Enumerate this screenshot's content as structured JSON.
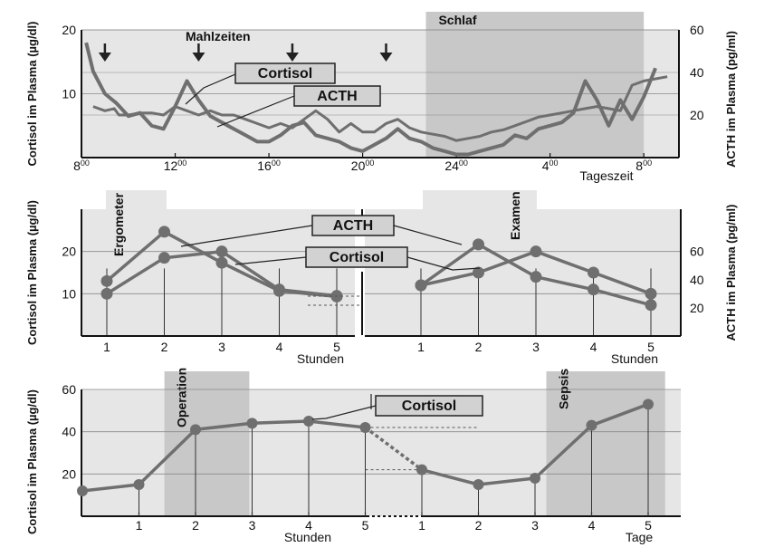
{
  "colors": {
    "panel_bg": "#e6e6e6",
    "band": "#c8c8c8",
    "line": "#6f6f6f",
    "marker": "#6f6f6f",
    "grid": "#8a8a8a",
    "text": "#111111"
  },
  "chart_data": [
    {
      "type": "line",
      "title": "",
      "xlabel": "Tageszeit",
      "ylabel": "Cortisol im Plasma (µg/dl)",
      "ylabel_right": "ACTH im Plasma (pg/ml)",
      "x_ticks": [
        {
          "x": 8,
          "main": "8",
          "sup": "00"
        },
        {
          "x": 12,
          "main": "12",
          "sup": "00"
        },
        {
          "x": 16,
          "main": "16",
          "sup": "00"
        },
        {
          "x": 20,
          "main": "20",
          "sup": "00"
        },
        {
          "x": 24,
          "main": "24",
          "sup": "00"
        },
        {
          "x": 28,
          "main": "4",
          "sup": "00"
        },
        {
          "x": 32,
          "main": "8",
          "sup": "00"
        }
      ],
      "xlim": [
        8,
        33.5
      ],
      "ylim": [
        0,
        20
      ],
      "ylim_right": [
        0,
        60
      ],
      "y_ticks": [
        10,
        20
      ],
      "y_ticks_right": [
        20,
        40,
        60
      ],
      "annotations": {
        "meals": "Mahlzeiten",
        "sleep": "Schlaf",
        "meal_times": [
          9,
          13,
          17,
          21
        ]
      },
      "sleep_band": [
        22.7,
        32
      ],
      "series": [
        {
          "name": "Cortisol",
          "axis": "left",
          "x": [
            8.2,
            8.5,
            9.0,
            9.5,
            10.0,
            10.5,
            11.0,
            11.5,
            12.0,
            12.5,
            13.0,
            13.5,
            14.0,
            14.5,
            15.0,
            15.5,
            16.0,
            16.5,
            17.0,
            17.5,
            18.0,
            18.5,
            19.0,
            19.5,
            20.0,
            20.5,
            21.0,
            21.5,
            22.0,
            22.5,
            23.0,
            23.5,
            24.0,
            24.5,
            25.0,
            25.5,
            26.0,
            26.5,
            27.0,
            27.5,
            28.0,
            28.5,
            29.0,
            29.5,
            30.0,
            30.5,
            31.0,
            31.5,
            32.0,
            32.5
          ],
          "values": [
            18,
            13.5,
            10,
            8.5,
            6.5,
            7,
            5,
            4.5,
            8,
            12,
            9,
            6.5,
            5.5,
            4.5,
            3.5,
            2.5,
            2.5,
            3.5,
            5,
            5.5,
            3.5,
            3,
            2.5,
            1.5,
            1,
            2,
            3,
            4.5,
            3,
            2.5,
            1.5,
            1,
            0.5,
            0.5,
            1,
            1.5,
            2,
            3.5,
            3,
            4.5,
            5,
            5.5,
            7,
            12,
            9,
            5,
            9,
            6,
            9.5,
            14
          ]
        },
        {
          "name": "ACTH",
          "axis": "right",
          "x": [
            8.5,
            9.0,
            9.4,
            9.6,
            10.0,
            10.5,
            11.0,
            11.5,
            12.0,
            12.5,
            13.0,
            13.5,
            14.0,
            14.5,
            15.0,
            15.5,
            16.0,
            16.5,
            17.0,
            17.5,
            18.0,
            18.5,
            19.0,
            19.5,
            20.0,
            20.5,
            21.0,
            21.5,
            22.0,
            22.5,
            23.0,
            23.5,
            24.0,
            24.5,
            25.0,
            25.5,
            26.0,
            26.5,
            27.0,
            27.5,
            28.0,
            28.5,
            29.0,
            29.5,
            30.0,
            30.5,
            31.0,
            31.5,
            32.0,
            33.0
          ],
          "values": [
            24,
            22,
            23,
            20,
            20,
            21,
            21,
            20,
            24,
            22,
            20,
            22,
            20,
            20,
            18,
            16,
            14,
            16,
            14,
            18,
            22,
            18,
            12,
            16,
            12,
            12,
            16,
            18,
            14,
            12,
            11,
            10,
            8,
            9,
            10,
            12,
            13,
            15,
            17,
            19,
            20,
            21,
            22,
            23,
            24,
            23,
            22,
            34,
            36,
            38
          ]
        }
      ]
    },
    {
      "type": "line",
      "title": "",
      "xlabel": "Stunden",
      "ylabel": "Cortisol im Plasma (µg/dl)",
      "ylabel_right": "ACTH im Plasma (pg/ml)",
      "ylim": [
        0,
        30
      ],
      "ylim_right": [
        0,
        90
      ],
      "y_ticks": [
        10,
        20
      ],
      "y_ticks_right": [
        20,
        40,
        60
      ],
      "panels": [
        {
          "label": "Ergometer",
          "categories": [
            "1",
            "2",
            "3",
            "4",
            "5"
          ],
          "series": [
            {
              "name": "ACTH",
              "axis": "right",
              "values": [
                39,
                74,
                52,
                32,
                28
              ]
            },
            {
              "name": "Cortisol",
              "axis": "left",
              "values": [
                10,
                18.5,
                20,
                11,
                9.5
              ]
            }
          ]
        },
        {
          "label": "Examen",
          "categories": [
            "1",
            "2",
            "3",
            "4",
            "5"
          ],
          "series": [
            {
              "name": "ACTH",
              "axis": "right",
              "values": [
                36,
                65,
                42,
                33,
                22
              ]
            },
            {
              "name": "Cortisol",
              "axis": "left",
              "values": [
                12,
                15,
                20,
                15,
                10
              ]
            }
          ]
        }
      ]
    },
    {
      "type": "line",
      "title": "",
      "xlabel": "Stunden",
      "xlabel_right": "Tage",
      "ylabel": "Cortisol im Plasma (µg/dl)",
      "ylim": [
        0,
        60
      ],
      "y_ticks": [
        20,
        40,
        60
      ],
      "categories": [
        "",
        "1",
        "2",
        "3",
        "4",
        "5",
        "1",
        "2",
        "3",
        "4",
        "5"
      ],
      "bands": [
        {
          "label": "Operation",
          "range": [
            1.45,
            2.95
          ]
        },
        {
          "label": "Sepsis",
          "range": [
            8.2,
            10.3
          ]
        }
      ],
      "series": [
        {
          "name": "Cortisol",
          "axis": "left",
          "values": [
            12,
            15,
            41,
            44,
            45,
            42,
            22,
            15,
            18,
            43,
            53
          ]
        }
      ]
    }
  ]
}
